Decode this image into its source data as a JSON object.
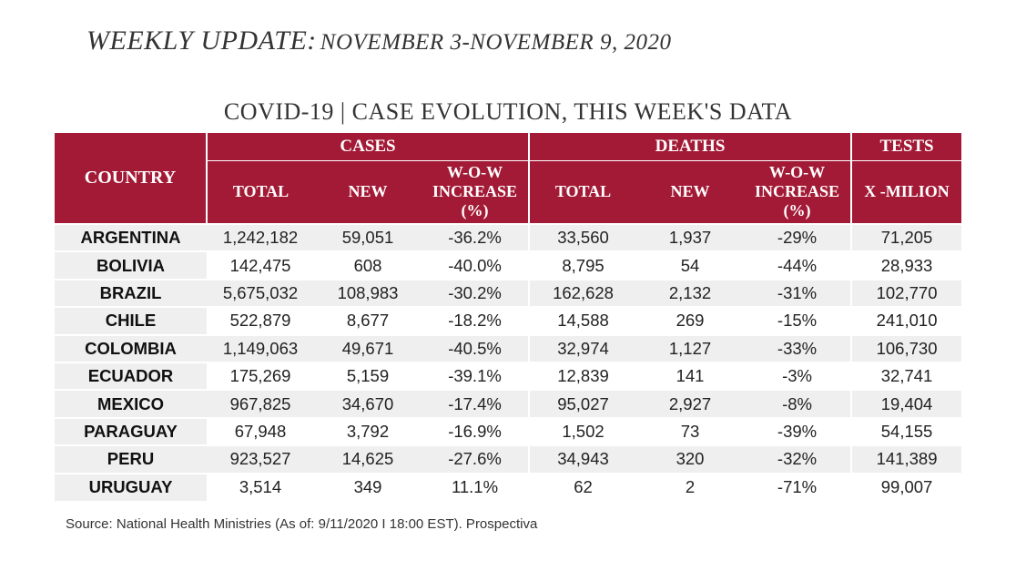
{
  "header": {
    "title_lead": "WEEKLY UPDATE:",
    "title_range": "NOVEMBER 3-NOVEMBER 9,  2020"
  },
  "table": {
    "title": "COVID-19 | CASE EVOLUTION, THIS WEEK'S DATA",
    "group_headers": {
      "cases": "CASES",
      "deaths": "DEATHS",
      "tests": "TESTS"
    },
    "country_header": "COUNTRY",
    "sub_headers": {
      "cases_total": "TOTAL",
      "cases_new": "NEW",
      "cases_wow_line1": "W-O-W",
      "cases_wow_line2": "INCREASE",
      "cases_wow_line3": "(%)",
      "deaths_total": "TOTAL",
      "deaths_new": "NEW",
      "deaths_wow_line1": "W-O-W",
      "deaths_wow_line2": "INCREASE",
      "deaths_wow_line3": "(%)",
      "tests_unit": "X -MILION"
    },
    "rows": [
      {
        "country": "ARGENTINA",
        "cases_total": "1,242,182",
        "cases_new": "59,051",
        "cases_wow": "-36.2%",
        "deaths_total": "33,560",
        "deaths_new": "1,937",
        "deaths_wow": "-29%",
        "tests": "71,205"
      },
      {
        "country": "BOLIVIA",
        "cases_total": "142,475",
        "cases_new": "608",
        "cases_wow": "-40.0%",
        "deaths_total": "8,795",
        "deaths_new": "54",
        "deaths_wow": "-44%",
        "tests": "28,933"
      },
      {
        "country": "BRAZIL",
        "cases_total": "5,675,032",
        "cases_new": "108,983",
        "cases_wow": "-30.2%",
        "deaths_total": "162,628",
        "deaths_new": "2,132",
        "deaths_wow": "-31%",
        "tests": "102,770"
      },
      {
        "country": "CHILE",
        "cases_total": "522,879",
        "cases_new": "8,677",
        "cases_wow": "-18.2%",
        "deaths_total": "14,588",
        "deaths_new": "269",
        "deaths_wow": "-15%",
        "tests": "241,010"
      },
      {
        "country": "COLOMBIA",
        "cases_total": "1,149,063",
        "cases_new": "49,671",
        "cases_wow": "-40.5%",
        "deaths_total": "32,974",
        "deaths_new": "1,127",
        "deaths_wow": "-33%",
        "tests": "106,730"
      },
      {
        "country": "ECUADOR",
        "cases_total": "175,269",
        "cases_new": "5,159",
        "cases_wow": "-39.1%",
        "deaths_total": "12,839",
        "deaths_new": "141",
        "deaths_wow": "-3%",
        "tests": "32,741"
      },
      {
        "country": "MEXICO",
        "cases_total": "967,825",
        "cases_new": "34,670",
        "cases_wow": "-17.4%",
        "deaths_total": "95,027",
        "deaths_new": "2,927",
        "deaths_wow": "-8%",
        "tests": "19,404"
      },
      {
        "country": "PARAGUAY",
        "cases_total": "67,948",
        "cases_new": "3,792",
        "cases_wow": "-16.9%",
        "deaths_total": "1,502",
        "deaths_new": "73",
        "deaths_wow": "-39%",
        "tests": "54,155"
      },
      {
        "country": "PERU",
        "cases_total": "923,527",
        "cases_new": "14,625",
        "cases_wow": "-27.6%",
        "deaths_total": "34,943",
        "deaths_new": "320",
        "deaths_wow": "-32%",
        "tests": "141,389"
      },
      {
        "country": "URUGUAY",
        "cases_total": "3,514",
        "cases_new": "349",
        "cases_wow": "11.1%",
        "deaths_total": "62",
        "deaths_new": "2",
        "deaths_wow": "-71%",
        "tests": "99,007"
      }
    ]
  },
  "footer": {
    "source": "Source: National Health Ministries (As of: 9/11/2020 I 18:00 EST). Prospectiva"
  },
  "colors": {
    "header_bg": "#a31a36",
    "header_text": "#ffffff",
    "row_shade": "#efefef"
  }
}
